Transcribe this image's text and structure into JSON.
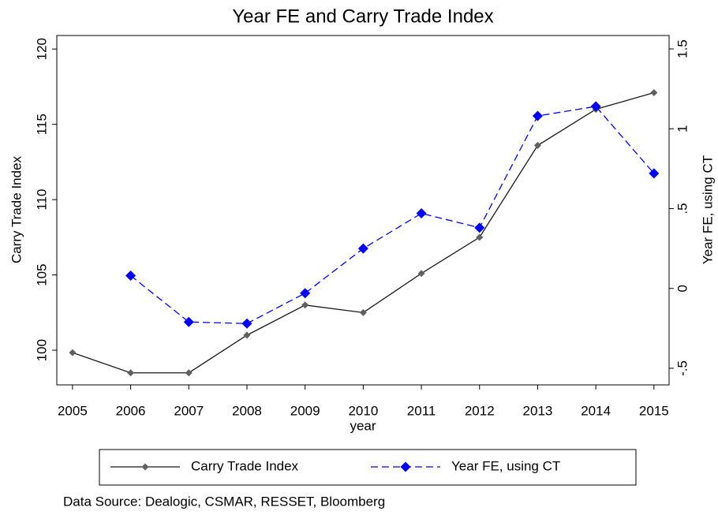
{
  "chart_data": {
    "type": "line",
    "title": "Year FE and Carry Trade Index",
    "xlabel": "year",
    "ylabel": "Carry Trade Index",
    "y2label": "Year FE, using CT",
    "note": "Data Source: Dealogic, CSMAR, RESSET, Bloomberg",
    "x": [
      2005,
      2006,
      2007,
      2008,
      2009,
      2010,
      2011,
      2012,
      2013,
      2014,
      2015
    ],
    "xlim": [
      2004.73,
      2015.26
    ],
    "xticks": [
      2005,
      2006,
      2007,
      2008,
      2009,
      2010,
      2011,
      2012,
      2013,
      2014,
      2015
    ],
    "ylim": [
      97.7,
      120.9
    ],
    "yticks": [
      100,
      105,
      110,
      115,
      120
    ],
    "y2lim": [
      -0.604,
      1.584
    ],
    "y2ticks": [
      {
        "value": -0.5,
        "label": "-.5"
      },
      0,
      {
        "value": 0.5,
        "label": ".5"
      },
      1,
      1.5
    ],
    "series": [
      {
        "name": "Carry Trade Index",
        "color": "#1a1a1a",
        "marker_color": "#606060",
        "dash": "solid",
        "values": [
          99.84,
          98.5,
          98.5,
          101.0,
          103.0,
          102.5,
          105.1,
          107.5,
          113.6,
          116.0,
          117.1
        ]
      },
      {
        "name": "Year FE, using CT",
        "color": "#0000ff",
        "marker_color": "#0000ff",
        "dash": "dashed",
        "axis": "y2",
        "values": [
          null,
          0.08,
          -0.21,
          -0.22,
          -0.03,
          0.25,
          0.47,
          0.38,
          1.08,
          1.14,
          0.72
        ]
      }
    ]
  }
}
